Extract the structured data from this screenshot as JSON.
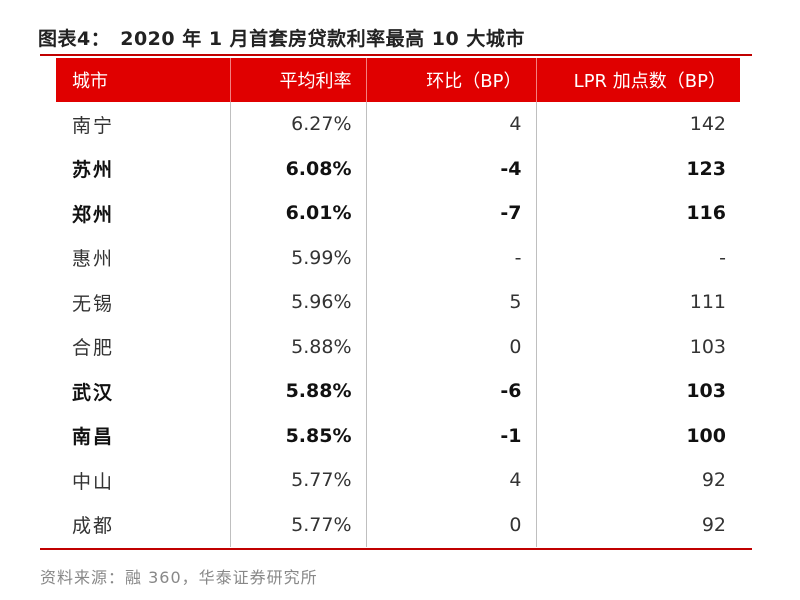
{
  "title": {
    "label": "图表4：",
    "text": "2020 年 1 月首套房贷款利率最高 10 大城市"
  },
  "table": {
    "headers": [
      "城市",
      "平均利率",
      "环比（BP）",
      "LPR 加点数（BP）"
    ],
    "rows": [
      {
        "city": "南宁",
        "rate": "6.27%",
        "change": "4",
        "lpr": "142",
        "bold": false
      },
      {
        "city": "苏州",
        "rate": "6.08%",
        "change": "-4",
        "lpr": "123",
        "bold": true
      },
      {
        "city": "郑州",
        "rate": "6.01%",
        "change": "-7",
        "lpr": "116",
        "bold": true
      },
      {
        "city": "惠州",
        "rate": "5.99%",
        "change": "-",
        "lpr": "-",
        "bold": false
      },
      {
        "city": "无锡",
        "rate": "5.96%",
        "change": "5",
        "lpr": "111",
        "bold": false
      },
      {
        "city": "合肥",
        "rate": "5.88%",
        "change": "0",
        "lpr": "103",
        "bold": false
      },
      {
        "city": "武汉",
        "rate": "5.88%",
        "change": "-6",
        "lpr": "103",
        "bold": true
      },
      {
        "city": "南昌",
        "rate": "5.85%",
        "change": "-1",
        "lpr": "100",
        "bold": true
      },
      {
        "city": "中山",
        "rate": "5.77%",
        "change": "4",
        "lpr": "92",
        "bold": false
      },
      {
        "city": "成都",
        "rate": "5.77%",
        "change": "0",
        "lpr": "92",
        "bold": false
      }
    ]
  },
  "source": "资料来源：融 360，华泰证券研究所",
  "colors": {
    "header_bg": "#e00000",
    "rule": "#c00000"
  }
}
